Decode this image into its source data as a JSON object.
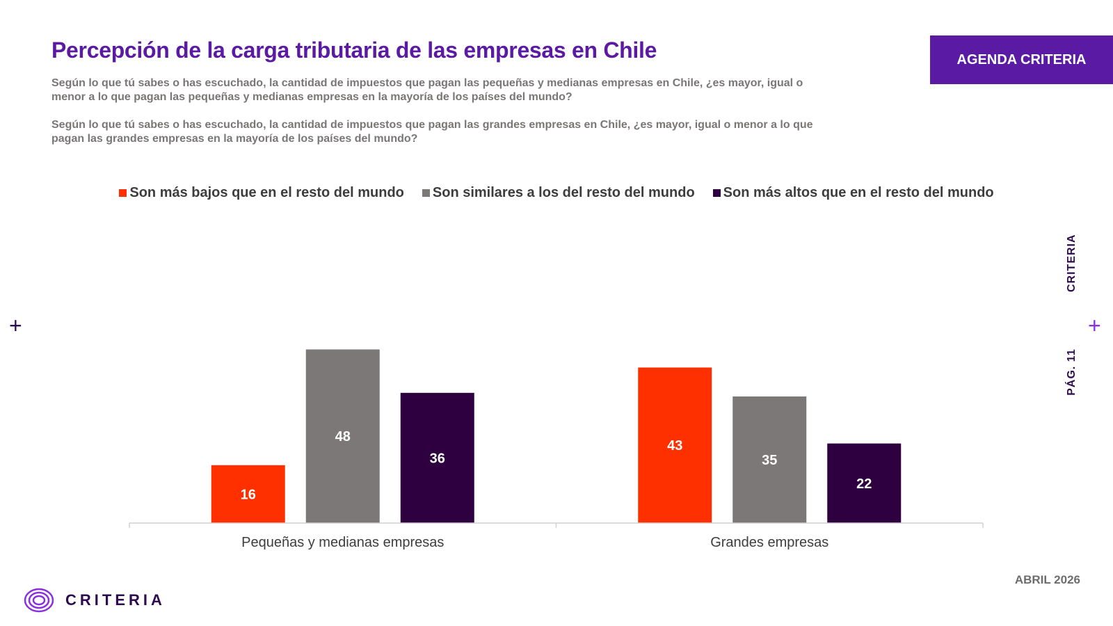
{
  "header": {
    "title": "Percepción de la carga tributaria de las empresas en Chile",
    "question_1": "Según lo que tú sabes o has escuchado, la cantidad de impuestos que pagan las pequeñas y medianas empresas en Chile, ¿es mayor, igual o menor a lo que pagan las pequeñas y medianas empresas en la mayoría de los países del mundo?",
    "question_2": "Según lo que tú sabes o has escuchado, la cantidad de impuestos que pagan las grandes empresas en Chile, ¿es mayor, igual o menor a lo que pagan las grandes empresas en la mayoría de los países del mundo?",
    "brand_box": "AGENDA CRITERIA"
  },
  "side": {
    "top_label": "CRITERIA",
    "bottom_label": "PÁG. 11",
    "plus": "+"
  },
  "footer": {
    "date": "ABRIL 2026",
    "logo_text": "CRITERIA"
  },
  "colors": {
    "accent": "#5b1aa3",
    "series": [
      "#ff3000",
      "#7c7877",
      "#2e0040"
    ]
  },
  "chart_data": {
    "type": "bar",
    "categories": [
      "Pequeñas y medianas empresas",
      "Grandes empresas"
    ],
    "series": [
      {
        "name": "Son más bajos que en el resto del mundo",
        "values": [
          16,
          43
        ]
      },
      {
        "name": "Son similares a los del resto del mundo",
        "values": [
          48,
          35
        ]
      },
      {
        "name": "Son más altos que en el resto del mundo",
        "values": [
          36,
          22
        ]
      }
    ],
    "ylim": [
      0,
      60
    ],
    "grid": false,
    "legend": "top-center",
    "data_labels": true
  }
}
